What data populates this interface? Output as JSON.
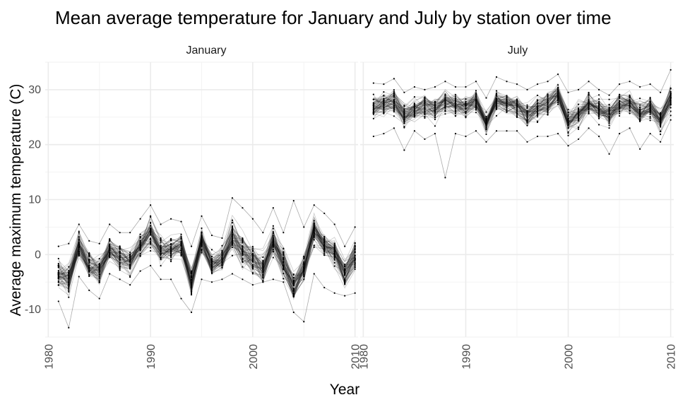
{
  "chart_data": {
    "type": "line",
    "title": "Mean average temperature for January and July by station over time",
    "xlabel": "Year",
    "ylabel": "Average maximum temperature (C)",
    "xlim": [
      1980,
      2010
    ],
    "ylim": [
      -15,
      35
    ],
    "x_ticks": [
      1980,
      1990,
      2000,
      2010
    ],
    "y_ticks": [
      -10,
      0,
      10,
      20,
      30
    ],
    "grid": true,
    "facets": [
      {
        "label": "January",
        "years": [
          1981,
          1982,
          1983,
          1984,
          1985,
          1986,
          1987,
          1988,
          1989,
          1990,
          1991,
          1992,
          1993,
          1994,
          1995,
          1996,
          1997,
          1998,
          1999,
          2000,
          2001,
          2002,
          2003,
          2004,
          2005,
          2006,
          2007,
          2008,
          2009,
          2010
        ],
        "station_mean": [
          -3.5,
          -4.5,
          1.5,
          -2.0,
          -3.0,
          1.0,
          -0.5,
          -1.5,
          1.5,
          4.0,
          0.5,
          1.0,
          1.5,
          -5.0,
          2.5,
          -2.0,
          -1.0,
          3.0,
          0.5,
          -1.0,
          -2.5,
          2.5,
          -1.5,
          -6.0,
          -2.5,
          4.5,
          1.5,
          0.5,
          -3.5,
          -0.5
        ],
        "spread": [
          2.5,
          2.5,
          2.0,
          2.0,
          2.5,
          2.0,
          2.0,
          2.0,
          2.0,
          2.5,
          2.5,
          2.0,
          2.0,
          2.5,
          2.0,
          2.0,
          2.0,
          3.0,
          2.5,
          2.5,
          2.5,
          2.5,
          2.5,
          2.5,
          2.5,
          2.5,
          2.0,
          2.5,
          2.5,
          2.5
        ],
        "range_min": [
          -8.5,
          -13.3,
          -4.0,
          -6.5,
          -8.0,
          -3.5,
          -4.5,
          -5.5,
          -3.0,
          -2.0,
          -4.5,
          -4.5,
          -8.0,
          -10.5,
          -4.5,
          -5.0,
          -4.5,
          -3.5,
          -4.5,
          -5.5,
          -5.0,
          -4.5,
          -5.0,
          -10.5,
          -12.2,
          -3.5,
          -6.0,
          -7.0,
          -7.5,
          -7.0
        ],
        "range_max": [
          1.5,
          2.0,
          5.5,
          2.5,
          2.0,
          5.5,
          4.0,
          4.0,
          6.5,
          9.0,
          5.5,
          6.5,
          6.0,
          1.5,
          7.0,
          3.5,
          3.0,
          10.3,
          8.5,
          6.5,
          4.0,
          8.5,
          4.0,
          9.8,
          5.0,
          9.0,
          7.5,
          5.5,
          1.5,
          5.0
        ]
      },
      {
        "label": "July",
        "years": [
          1981,
          1982,
          1983,
          1984,
          1985,
          1986,
          1987,
          1988,
          1989,
          1990,
          1991,
          1992,
          1993,
          1994,
          1995,
          1996,
          1997,
          1998,
          1999,
          2000,
          2001,
          2002,
          2003,
          2004,
          2005,
          2006,
          2007,
          2008,
          2009,
          2010
        ],
        "station_mean": [
          27.0,
          27.5,
          28.0,
          25.5,
          26.5,
          27.0,
          26.5,
          28.0,
          27.5,
          27.0,
          28.0,
          24.0,
          28.0,
          27.5,
          27.0,
          25.5,
          27.0,
          27.5,
          29.0,
          24.5,
          25.5,
          27.5,
          26.5,
          25.5,
          27.5,
          27.5,
          26.0,
          27.0,
          24.5,
          28.5
        ],
        "spread": [
          2.0,
          2.0,
          2.0,
          2.0,
          1.8,
          2.0,
          2.0,
          1.8,
          1.8,
          1.8,
          1.8,
          1.8,
          2.0,
          1.8,
          1.8,
          2.0,
          2.0,
          1.8,
          1.8,
          2.0,
          2.0,
          1.8,
          1.8,
          1.8,
          1.8,
          1.8,
          1.8,
          1.8,
          2.0,
          2.0
        ],
        "range_min": [
          21.5,
          22.0,
          23.0,
          19.0,
          22.5,
          21.0,
          22.0,
          14.0,
          22.0,
          21.5,
          22.5,
          20.5,
          22.5,
          22.5,
          22.5,
          20.5,
          21.5,
          21.5,
          22.0,
          19.8,
          21.0,
          23.0,
          21.5,
          18.3,
          22.0,
          23.0,
          19.2,
          22.0,
          20.5,
          24.5
        ],
        "range_max": [
          31.2,
          31.0,
          32.0,
          29.5,
          30.5,
          30.0,
          30.5,
          31.5,
          30.5,
          30.5,
          31.5,
          28.5,
          32.3,
          31.5,
          31.0,
          30.0,
          31.0,
          31.5,
          32.8,
          29.5,
          30.0,
          31.5,
          30.0,
          29.0,
          31.0,
          31.5,
          30.5,
          31.0,
          29.5,
          33.6
        ]
      }
    ]
  }
}
